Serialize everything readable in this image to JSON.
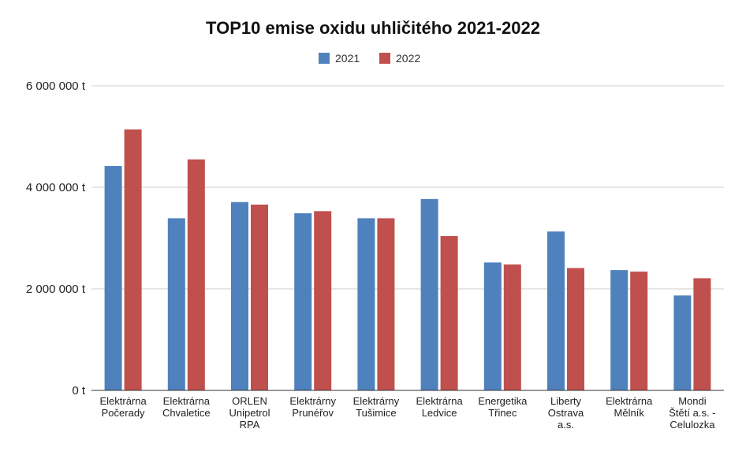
{
  "chart_data": {
    "type": "bar",
    "title": "TOP10 emise oxidu uhličitého 2021-2022",
    "categories": [
      [
        "Elektrárna",
        "Počerady"
      ],
      [
        "Elektrárna",
        "Chvaletice"
      ],
      [
        "ORLEN",
        "Unipetrol",
        "RPA"
      ],
      [
        "Elektrárny",
        "Prunéřov"
      ],
      [
        "Elektrárny",
        "Tušimice"
      ],
      [
        "Elektrárna",
        "Ledvice"
      ],
      [
        "Energetika",
        "Třinec"
      ],
      [
        "Liberty",
        "Ostrava",
        "a.s."
      ],
      [
        "Elektrárna",
        "Mělník"
      ],
      [
        "Mondi",
        "Štětí a.s. -",
        "Celulozka"
      ]
    ],
    "series": [
      {
        "name": "2021",
        "color": "#4f81bd",
        "values": [
          4420000,
          3390000,
          3710000,
          3490000,
          3390000,
          3770000,
          2520000,
          3130000,
          2370000,
          1870000
        ]
      },
      {
        "name": "2022",
        "color": "#c0504d",
        "values": [
          5140000,
          4550000,
          3660000,
          3530000,
          3390000,
          3040000,
          2480000,
          2410000,
          2340000,
          2210000
        ]
      }
    ],
    "ylim": [
      0,
      6000000
    ],
    "yticks": [
      {
        "value": 0,
        "label": "0 t"
      },
      {
        "value": 2000000,
        "label": "2 000 000 t"
      },
      {
        "value": 4000000,
        "label": "4 000 000 t"
      },
      {
        "value": 6000000,
        "label": "6 000 000 t"
      }
    ],
    "legend_position": "top-center",
    "grid": true
  }
}
